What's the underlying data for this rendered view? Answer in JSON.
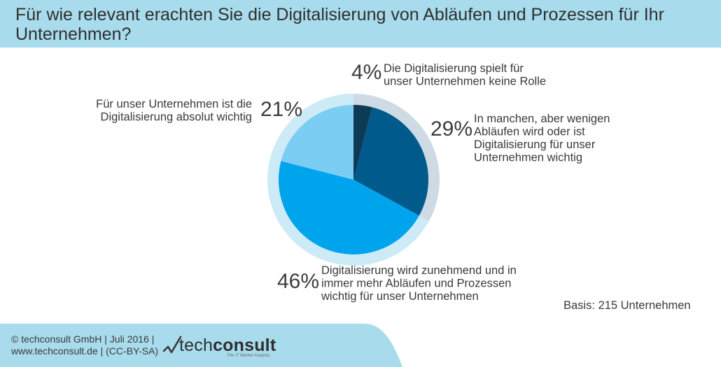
{
  "header": {
    "title": "Für wie relevant erachten Sie die Digitalisierung von Abläufen und Prozessen für Ihr Unternehmen?"
  },
  "chart_data": {
    "type": "pie",
    "title": "Für wie relevant erachten Sie die Digitalisierung von Abläufen und Prozessen für Ihr Unternehmen?",
    "slices": [
      {
        "value": 4,
        "pct_label": "4%",
        "label_lines": [
          "Die Digitalisierung spielt für",
          "unser Unternehmen keine Rolle"
        ],
        "color": "#0d3a55"
      },
      {
        "value": 29,
        "pct_label": "29%",
        "label_lines": [
          "In manchen, aber wenigen",
          "Abläufen wird oder ist",
          "Digitalisierung für unser",
          "Unternehmen wichtig"
        ],
        "color": "#005a8c"
      },
      {
        "value": 46,
        "pct_label": "46%",
        "label_lines": [
          "Digitalisierung wird zunehmend und in",
          "immer mehr Abläufen und Prozessen",
          "wichtig für unser Unternehmen"
        ],
        "color": "#00a4ed"
      },
      {
        "value": 21,
        "pct_label": "21%",
        "label_lines": [
          "Für unser Unternehmen ist die",
          "Digitalisierung absolut wichtig"
        ],
        "color": "#7ccdf3"
      }
    ],
    "ring_colors": {
      "dark": "#cfdbe4",
      "light": "#cdeaf7"
    }
  },
  "basis": "Basis: 215 Unternehmen",
  "footer": {
    "copyright_line1": "© techconsult GmbH | Juli 2016 |",
    "copyright_line2": "www.techconsult.de | (CC-BY-SA)",
    "logo_text_light": "tech",
    "logo_text_bold": "consult",
    "logo_tagline": "The IT Market Analysts",
    "band_color": "#a8dcec"
  }
}
